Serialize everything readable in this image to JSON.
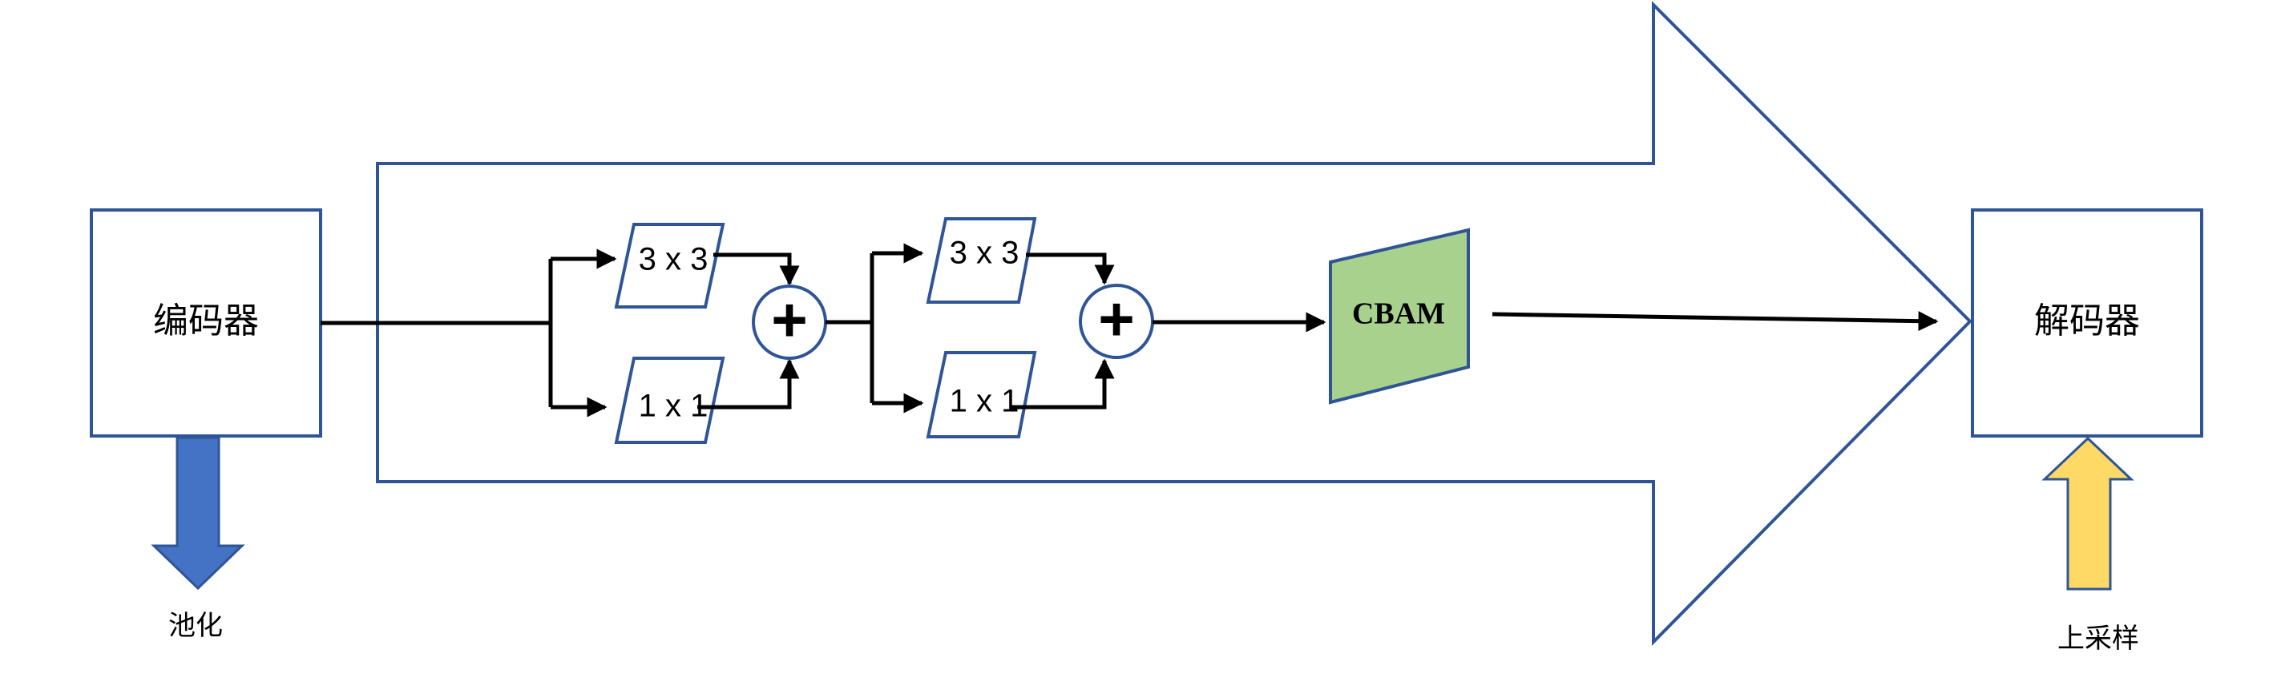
{
  "encoder": {
    "label": "编码器"
  },
  "decoder": {
    "label": "解码器"
  },
  "pooling": {
    "label": "池化"
  },
  "upsampling": {
    "label": "上采样"
  },
  "block1": {
    "conv_top": "3 x 3",
    "conv_bottom": "1 x 1",
    "sum_symbol": "+"
  },
  "block2": {
    "conv_top": "3 x 3",
    "conv_bottom": "1 x 1",
    "sum_symbol": "+"
  },
  "attention": {
    "label": "CBAM"
  },
  "colors": {
    "outline": "#2F5597",
    "pool_arrow": "#4472C4",
    "upsample_arrow": "#FFD966",
    "cbam_fill": "#A9D18E",
    "line": "#000000"
  }
}
